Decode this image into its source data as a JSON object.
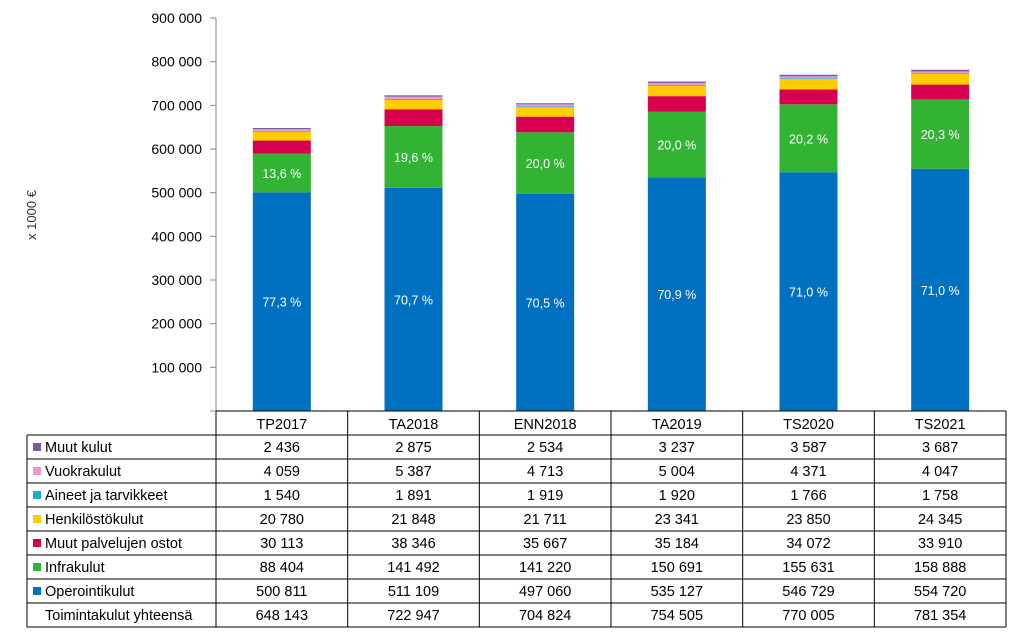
{
  "chart_data": {
    "type": "bar",
    "stacked": true,
    "ylabel": "x 1000 €",
    "ylim": [
      0,
      900000
    ],
    "yticks": [
      {
        "value": 100000,
        "label": "100 000"
      },
      {
        "value": 200000,
        "label": "200 000"
      },
      {
        "value": 300000,
        "label": "300 000"
      },
      {
        "value": 400000,
        "label": "400 000"
      },
      {
        "value": 500000,
        "label": "500 000"
      },
      {
        "value": 600000,
        "label": "600 000"
      },
      {
        "value": 700000,
        "label": "700 000"
      },
      {
        "value": 800000,
        "label": "800 000"
      },
      {
        "value": 900000,
        "label": "900 000"
      }
    ],
    "grid": false,
    "categories": [
      "TP2017",
      "TA2018",
      "ENN2018",
      "TA2019",
      "TS2020",
      "TS2021"
    ],
    "series": [
      {
        "name": "Operointikulut",
        "color": "#0070C0",
        "values": [
          500811,
          511109,
          497060,
          535127,
          546729,
          554720
        ],
        "display": [
          "500 811",
          "511 109",
          "497 060",
          "535 127",
          "546 729",
          "554 720"
        ],
        "bar_labels": [
          "77,3 %",
          "70,7 %",
          "70,5 %",
          "70,9 %",
          "71,0 %",
          "71,0 %"
        ]
      },
      {
        "name": "Infrakulut",
        "color": "#33B333",
        "values": [
          88404,
          141492,
          141220,
          150691,
          155631,
          158888
        ],
        "display": [
          "88 404",
          "141 492",
          "141 220",
          "150 691",
          "155 631",
          "158 888"
        ],
        "bar_labels": [
          "13,6 %",
          "19,6 %",
          "20,0 %",
          "20,0 %",
          "20,2 %",
          "20,3 %"
        ]
      },
      {
        "name": "Muut palvelujen ostot",
        "color": "#D6004F",
        "values": [
          30113,
          38346,
          35667,
          35184,
          34072,
          33910
        ],
        "display": [
          "30 113",
          "38 346",
          "35 667",
          "35 184",
          "34 072",
          "33 910"
        ]
      },
      {
        "name": "Henkilöstökulut",
        "color": "#FFCC00",
        "values": [
          20780,
          21848,
          21711,
          23341,
          23850,
          24345
        ],
        "display": [
          "20 780",
          "21 848",
          "21 711",
          "23 341",
          "23 850",
          "24 345"
        ]
      },
      {
        "name": "Aineet ja tarvikkeet",
        "color": "#1BA9D8",
        "values": [
          1540,
          1891,
          1919,
          1920,
          1766,
          1758
        ],
        "display": [
          "1 540",
          "1 891",
          "1 919",
          "1 920",
          "1 766",
          "1 758"
        ]
      },
      {
        "name": "Vuokrakulut",
        "color": "#E89ACD",
        "values": [
          4059,
          5387,
          4713,
          5004,
          4371,
          4047
        ],
        "display": [
          "4 059",
          "5 387",
          "4 713",
          "5 004",
          "4 371",
          "4 047"
        ]
      },
      {
        "name": "Muut kulut",
        "color": "#7B5A9C",
        "values": [
          2436,
          2875,
          2534,
          3237,
          3587,
          3687
        ],
        "display": [
          "2 436",
          "2 875",
          "2 534",
          "3 237",
          "3 587",
          "3 687"
        ]
      }
    ],
    "totals": {
      "name": "Toimintakulut yhteensä",
      "values": [
        648143,
        722947,
        704824,
        754505,
        770005,
        781354
      ],
      "display": [
        "648 143",
        "722 947",
        "704 824",
        "754 505",
        "770 005",
        "781 354"
      ]
    },
    "table_row_order": [
      "Muut kulut",
      "Vuokrakulut",
      "Aineet ja tarvikkeet",
      "Henkilöstökulut",
      "Muut palvelujen ostot",
      "Infrakulut",
      "Operointikulut"
    ]
  }
}
